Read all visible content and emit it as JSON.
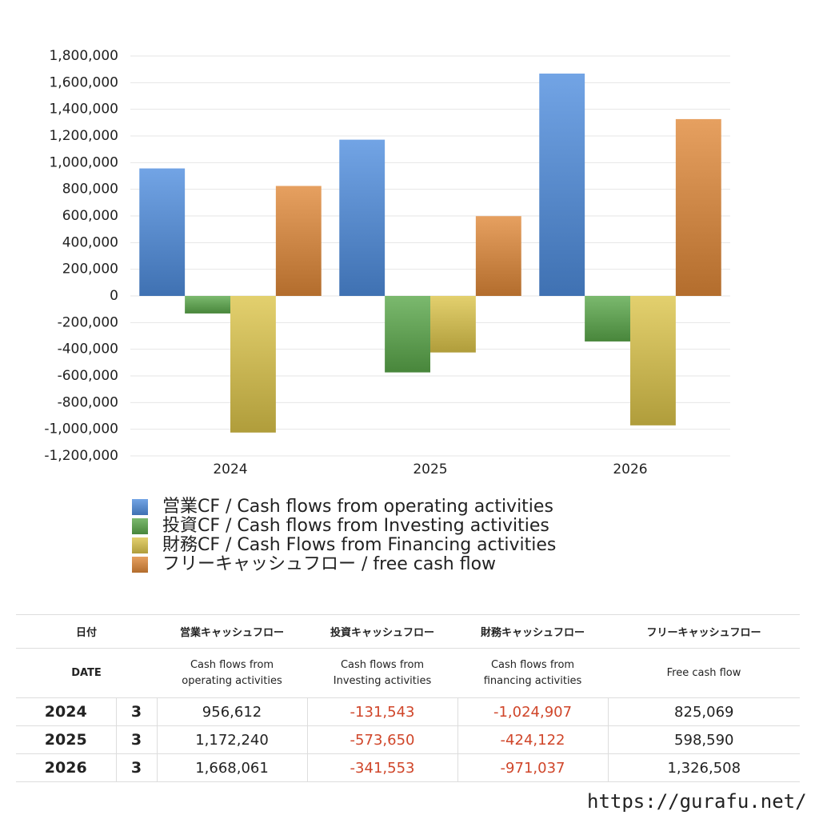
{
  "chart_data": {
    "type": "bar",
    "categories": [
      "2024",
      "2025",
      "2026"
    ],
    "series": [
      {
        "name": "営業CF / Cash flows from operating activities",
        "color": "#4f8ddf",
        "values": [
          956612,
          1172240,
          1668061
        ]
      },
      {
        "name": "投資CF / Cash flows from Investing activities",
        "color": "#5aa84a",
        "values": [
          -131543,
          -573650,
          -341553
        ]
      },
      {
        "name": "財務CF / Cash Flows from Financing activities",
        "color": "#dcc44a",
        "values": [
          -1024907,
          -424122,
          -971037
        ]
      },
      {
        "name": "フリーキャッシュフロー / free cash flow",
        "color": "#e08838",
        "values": [
          825069,
          598590,
          1326508
        ]
      }
    ],
    "ylim": [
      -1200000,
      1800000
    ],
    "yticks": [
      {
        "value": -1200000,
        "label": "-1,200,000"
      },
      {
        "value": -1000000,
        "label": "-1,000,000"
      },
      {
        "value": -800000,
        "label": "-800,000"
      },
      {
        "value": -600000,
        "label": "-600,000"
      },
      {
        "value": -400000,
        "label": "-400,000"
      },
      {
        "value": -200000,
        "label": "-200,000"
      },
      0,
      {
        "value": 200000,
        "label": "200,000"
      },
      {
        "value": 400000,
        "label": "400,000"
      },
      {
        "value": 600000,
        "label": "600,000"
      },
      {
        "value": 800000,
        "label": "800,000"
      },
      {
        "value": 1000000,
        "label": "1,000,000"
      },
      {
        "value": 1200000,
        "label": "1,200,000"
      },
      {
        "value": 1400000,
        "label": "1,400,000"
      },
      {
        "value": 1600000,
        "label": "1,600,000"
      },
      {
        "value": 1800000,
        "label": "1,800,000"
      }
    ],
    "grid": true,
    "legend": "bottom"
  },
  "table": {
    "header": [
      "日付",
      "営業キャッシュフロー",
      "投資キャッシュフロー",
      "財務キャッシュフロー",
      "フリーキャッシュフロー"
    ],
    "subheader": [
      "DATE",
      "Cash flows from operating activities",
      "Cash flows from Investing activities",
      "Cash flows from financing activities",
      "Free cash flow"
    ],
    "rows": [
      [
        "2024",
        "3",
        "956,612",
        "-131,543",
        "-1,024,907",
        "825,069"
      ],
      [
        "2025",
        "3",
        "1,172,240",
        "-573,650",
        "-424,122",
        "598,590"
      ],
      [
        "2026",
        "3",
        "1,668,061",
        "-341,553",
        "-971,037",
        "1,326,508"
      ]
    ]
  },
  "footer": "https://gurafu.net/"
}
